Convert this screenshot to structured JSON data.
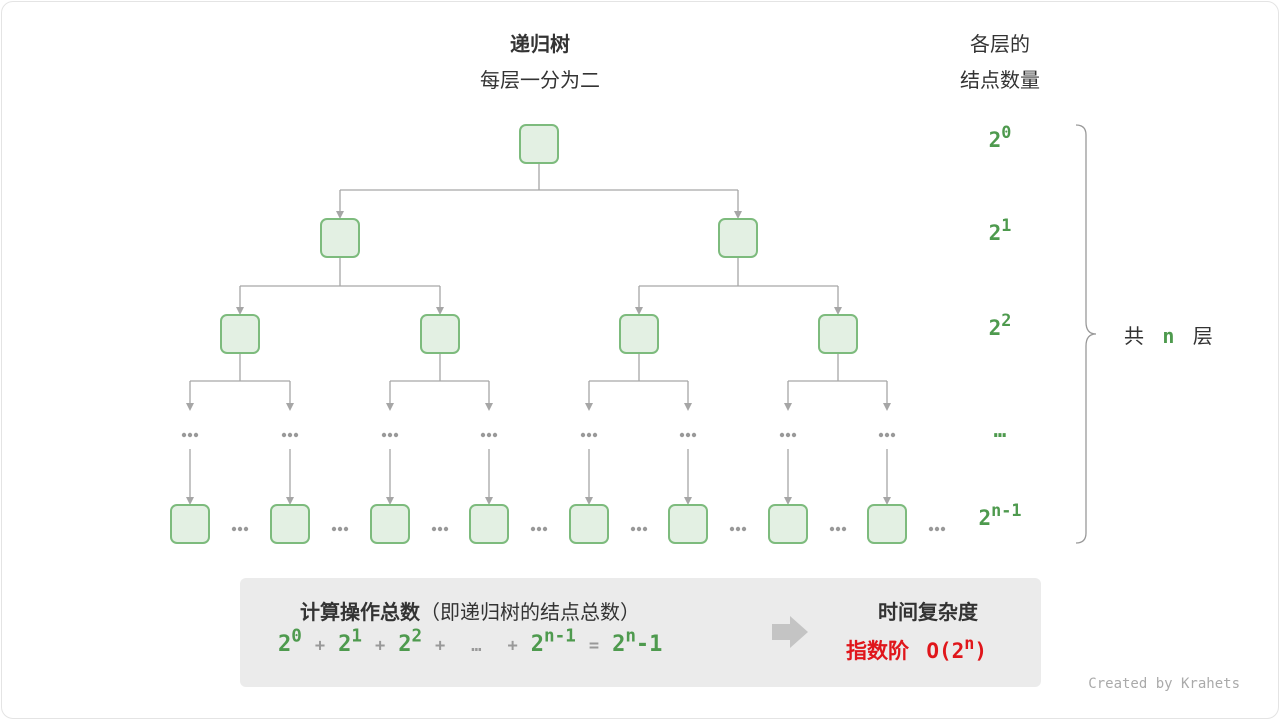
{
  "title": "递归树",
  "subtitle": "每层一分为二",
  "right_header": [
    "各层的",
    "结点数量"
  ],
  "levels": [
    {
      "base": "2",
      "exp": "0"
    },
    {
      "base": "2",
      "exp": "1"
    },
    {
      "base": "2",
      "exp": "2"
    },
    {
      "base": "…",
      "exp": ""
    },
    {
      "base": "2",
      "exp": "n-1"
    }
  ],
  "total_layers": {
    "prefix": "共",
    "n": "n",
    "suffix": "层"
  },
  "ellipsis": "•••",
  "summary": {
    "heading": "计算操作总数",
    "heading_note": "（即递归树的结点总数）",
    "formula": [
      {
        "base": "2",
        "exp": "0"
      },
      {
        "op": "+"
      },
      {
        "base": "2",
        "exp": "1"
      },
      {
        "op": "+"
      },
      {
        "base": "2",
        "exp": "2"
      },
      {
        "op": "+"
      },
      {
        "op": "…"
      },
      {
        "op": "+"
      },
      {
        "base": "2",
        "exp": "n-1"
      },
      {
        "op": "="
      },
      {
        "base": "2",
        "exp": "n",
        "tail": "-1"
      }
    ],
    "complexity_heading": "时间复杂度",
    "complexity_label": "指数阶",
    "complexity_value": {
      "prefix": "O(2",
      "exp": "n",
      "suffix": ")"
    }
  },
  "credit": "Created by Krahets",
  "colors": {
    "node_fill": "#e3f0e3",
    "node_stroke": "#7dbb7d",
    "edge": "#a6a6a6",
    "green": "#4e9a4e",
    "red": "#e0161b"
  }
}
